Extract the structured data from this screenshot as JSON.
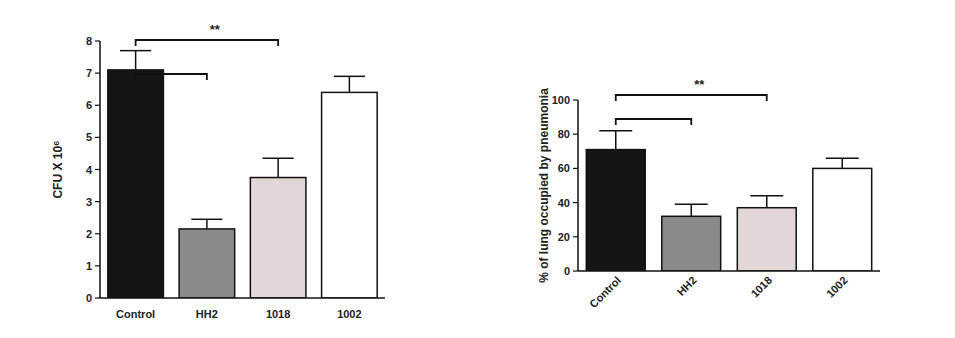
{
  "chart_data": [
    {
      "type": "bar",
      "y_label": "CFU X 10⁶",
      "categories": [
        "Control",
        "HH2",
        "1018",
        "1002"
      ],
      "values": [
        7.1,
        2.15,
        3.75,
        6.4
      ],
      "errors": [
        0.6,
        0.3,
        0.6,
        0.5
      ],
      "colors": [
        "#151515",
        "#8a8a8a",
        "#e2d6d6",
        "#ffffff"
      ],
      "ylim": [
        0,
        8
      ],
      "yticks": [
        0,
        1,
        2,
        3,
        4,
        5,
        6,
        7,
        8
      ],
      "annotations": [
        {
          "from": "Control",
          "to": "1018",
          "text": "**"
        },
        {
          "from": "Control",
          "to": "HH2"
        }
      ]
    },
    {
      "type": "bar",
      "y_label": "% of lung occupied by pneumonia",
      "categories": [
        "Control",
        "HH2",
        "1018",
        "1002"
      ],
      "values": [
        71,
        32,
        37,
        60
      ],
      "errors": [
        11,
        7,
        7,
        6
      ],
      "colors": [
        "#151515",
        "#8a8a8a",
        "#e2d6d6",
        "#ffffff"
      ],
      "ylim": [
        0,
        100
      ],
      "yticks": [
        0,
        20,
        40,
        60,
        80,
        100
      ],
      "annotations": [
        {
          "from": "Control",
          "to": "1018",
          "text": "**"
        },
        {
          "from": "Control",
          "to": "HH2"
        }
      ]
    }
  ]
}
